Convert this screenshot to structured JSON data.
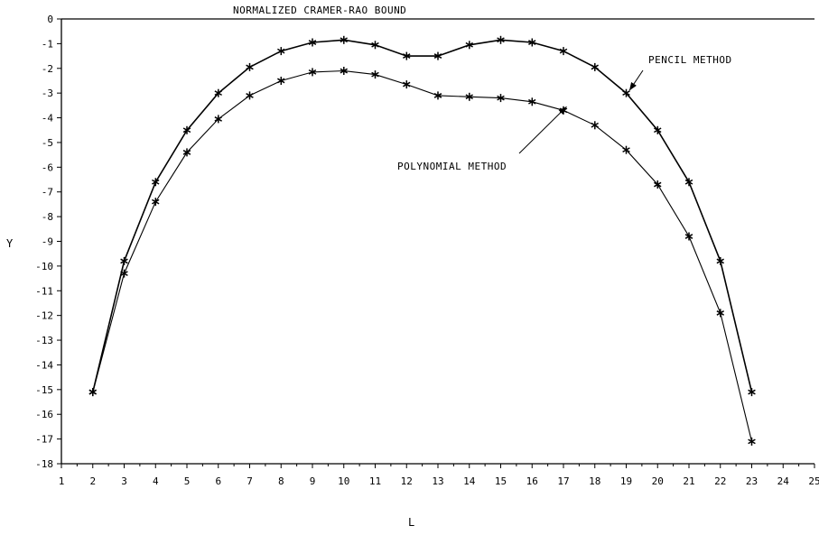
{
  "chart_data": {
    "type": "line",
    "title": "NORMALIZED CRAMER-RAO BOUND",
    "xlabel": "L",
    "ylabel": "Y",
    "xlim": [
      1,
      25
    ],
    "ylim": [
      -18,
      0
    ],
    "xticks": [
      1,
      2,
      3,
      4,
      5,
      6,
      7,
      8,
      9,
      10,
      11,
      12,
      13,
      14,
      15,
      16,
      17,
      18,
      19,
      20,
      21,
      22,
      23,
      24,
      25
    ],
    "yticks": [
      0,
      -1,
      -2,
      -3,
      -4,
      -5,
      -6,
      -7,
      -8,
      -9,
      -10,
      -11,
      -12,
      -13,
      -14,
      -15,
      -16,
      -17,
      -18
    ],
    "grid": false,
    "marker": "*",
    "series": [
      {
        "name": "PENCIL METHOD",
        "x": [
          2,
          3,
          4,
          5,
          6,
          7,
          8,
          9,
          10,
          11,
          12,
          13,
          14,
          15,
          16,
          17,
          18,
          19,
          20,
          21,
          22,
          23
        ],
        "y": [
          -15.1,
          -9.8,
          -6.6,
          -4.5,
          -3.0,
          -1.95,
          -1.3,
          -0.95,
          -0.85,
          -1.05,
          -1.5,
          -1.5,
          -1.05,
          -0.85,
          -0.95,
          -1.3,
          -1.95,
          -3.0,
          -4.5,
          -6.6,
          -9.8,
          -15.1
        ]
      },
      {
        "name": "POLYNOMIAL METHOD",
        "x": [
          2,
          3,
          4,
          5,
          6,
          7,
          8,
          9,
          10,
          11,
          12,
          13,
          14,
          15,
          16,
          17,
          18,
          19,
          20,
          21,
          22,
          23
        ],
        "y": [
          -15.1,
          -10.3,
          -7.4,
          -5.4,
          -4.05,
          -3.1,
          -2.5,
          -2.15,
          -2.1,
          -2.25,
          -2.65,
          -3.1,
          -3.15,
          -3.2,
          -3.35,
          -3.7,
          -4.3,
          -5.3,
          -6.7,
          -8.8,
          -11.9,
          -17.1
        ]
      }
    ],
    "annotations": [
      {
        "text": "PENCIL METHOD",
        "points_to": [
          19.1,
          -2.9
        ]
      },
      {
        "text": "POLYNOMIAL METHOD",
        "points_to": [
          17.1,
          -3.55
        ]
      }
    ]
  }
}
